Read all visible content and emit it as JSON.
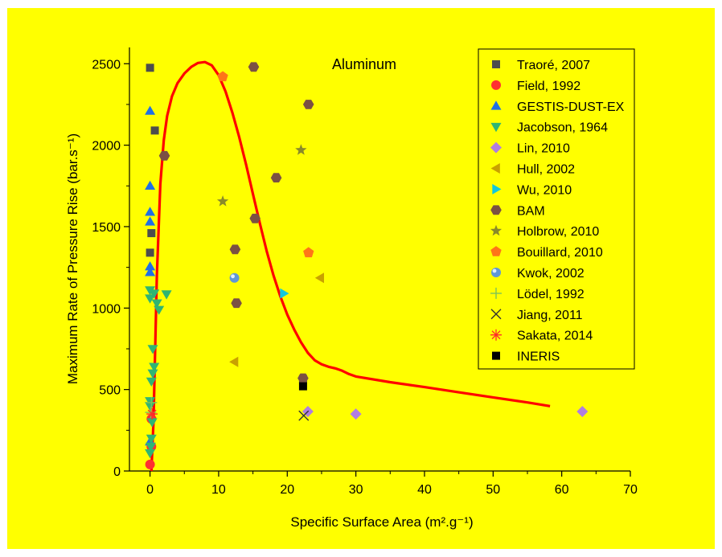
{
  "colors": {
    "background": "#ffff00",
    "fit_curve": "#ff0000"
  },
  "chart_data": {
    "type": "scatter",
    "title": "Aluminum",
    "xlabel": "Specific Surface Area (m².g⁻¹)",
    "ylabel": "Maximum Rate of Pressure Rise (bar.s⁻¹)",
    "xlim": [
      -3,
      70
    ],
    "ylim": [
      0,
      2600
    ],
    "xticks": [
      0,
      10,
      20,
      30,
      40,
      50,
      60,
      70
    ],
    "yticks": [
      0,
      500,
      1000,
      1500,
      2000,
      2500
    ],
    "grid": false,
    "legend_position": "top-right",
    "series": [
      {
        "name": "Traoré, 2007",
        "marker": "square",
        "color": "#4d4d4d",
        "points": [
          [
            0,
            2475
          ],
          [
            0.7,
            2090
          ],
          [
            0.2,
            1460
          ],
          [
            0,
            1340
          ],
          [
            22.3,
            565
          ]
        ]
      },
      {
        "name": "Field, 1992",
        "marker": "circle",
        "color": "#ff3030",
        "points": [
          [
            0,
            40
          ],
          [
            0.2,
            150
          ],
          [
            0.2,
            320
          ]
        ]
      },
      {
        "name": "GESTIS-DUST-EX",
        "marker": "triangle-up",
        "color": "#1f6fe5",
        "points": [
          [
            0,
            2210
          ],
          [
            0,
            1750
          ],
          [
            0,
            1590
          ],
          [
            0,
            1530
          ],
          [
            0,
            1255
          ],
          [
            0,
            1220
          ],
          [
            0,
            180
          ]
        ]
      },
      {
        "name": "Jacobson, 1964",
        "marker": "triangle-down",
        "color": "#2fb573",
        "points": [
          [
            0,
            1110
          ],
          [
            0,
            1060
          ],
          [
            0.6,
            1090
          ],
          [
            1,
            1030
          ],
          [
            1.3,
            990
          ],
          [
            2.4,
            1085
          ],
          [
            0.4,
            750
          ],
          [
            0.6,
            640
          ],
          [
            0.4,
            600
          ],
          [
            0.2,
            550
          ],
          [
            0,
            430
          ],
          [
            0,
            400
          ],
          [
            0.3,
            300
          ],
          [
            0.2,
            200
          ],
          [
            0.1,
            150
          ],
          [
            0,
            110
          ]
        ]
      },
      {
        "name": "Lin, 2010",
        "marker": "diamond",
        "color": "#b07ee0",
        "points": [
          [
            23,
            365
          ],
          [
            30,
            350
          ],
          [
            63,
            365
          ]
        ]
      },
      {
        "name": "Hull, 2002",
        "marker": "triangle-left",
        "color": "#c9a100",
        "points": [
          [
            12.3,
            670
          ],
          [
            24.8,
            1185
          ]
        ]
      },
      {
        "name": "Wu, 2010",
        "marker": "triangle-right",
        "color": "#12c8dd",
        "points": [
          [
            19.5,
            1090
          ]
        ]
      },
      {
        "name": "BAM",
        "marker": "hexagon",
        "color": "#7b5143",
        "points": [
          [
            15.1,
            2480
          ],
          [
            23.1,
            2250
          ],
          [
            18.4,
            1800
          ],
          [
            15.3,
            1550
          ],
          [
            12.4,
            1360
          ],
          [
            12.6,
            1030
          ],
          [
            2.1,
            1935
          ],
          [
            22.3,
            570
          ]
        ]
      },
      {
        "name": "Holbrow, 2010",
        "marker": "star",
        "color": "#8a8a2a",
        "points": [
          [
            10.6,
            1655
          ],
          [
            22.0,
            1970
          ]
        ]
      },
      {
        "name": "Bouillard, 2010",
        "marker": "pentagon",
        "color": "#ff7518",
        "points": [
          [
            10.6,
            2420
          ],
          [
            23.1,
            1340
          ]
        ]
      },
      {
        "name": "Kwok, 2002",
        "marker": "sphere",
        "color": "#5f97d6",
        "points": [
          [
            12.3,
            1185
          ]
        ]
      },
      {
        "name": "Lödel, 1992",
        "marker": "plus",
        "color": "#7ac25a",
        "points": [
          [
            0.2,
            420
          ],
          [
            0.1,
            360
          ]
        ]
      },
      {
        "name": "Jiang, 2011",
        "marker": "cross",
        "color": "#333333",
        "points": [
          [
            22.4,
            340
          ]
        ]
      },
      {
        "name": "Sakata, 2014",
        "marker": "asterisk",
        "color": "#ff2a2a",
        "points": [
          [
            0.3,
            350
          ]
        ]
      },
      {
        "name": "INERIS",
        "marker": "square-filled",
        "color": "#000000",
        "points": [
          [
            22.3,
            520
          ]
        ]
      }
    ],
    "fit_curve": {
      "color": "#ff0000",
      "points": [
        [
          0.2,
          0
        ],
        [
          0.5,
          300
        ],
        [
          1,
          1200
        ],
        [
          1.5,
          1760
        ],
        [
          2,
          2030
        ],
        [
          2.5,
          2180
        ],
        [
          3.2,
          2300
        ],
        [
          4,
          2380
        ],
        [
          5,
          2440
        ],
        [
          6,
          2480
        ],
        [
          7,
          2505
        ],
        [
          8,
          2510
        ],
        [
          9,
          2490
        ],
        [
          10,
          2430
        ],
        [
          11,
          2330
        ],
        [
          12,
          2200
        ],
        [
          13,
          2050
        ],
        [
          14,
          1880
        ],
        [
          15,
          1700
        ],
        [
          16,
          1520
        ],
        [
          17,
          1350
        ],
        [
          18,
          1200
        ],
        [
          19,
          1070
        ],
        [
          20,
          960
        ],
        [
          21,
          870
        ],
        [
          22,
          790
        ],
        [
          23,
          725
        ],
        [
          24,
          680
        ],
        [
          25,
          655
        ],
        [
          26,
          640
        ],
        [
          27,
          630
        ],
        [
          28,
          615
        ],
        [
          29,
          595
        ],
        [
          30,
          580
        ],
        [
          35,
          545
        ],
        [
          40,
          515
        ],
        [
          45,
          483
        ],
        [
          50,
          452
        ],
        [
          55,
          421
        ],
        [
          58.3,
          398
        ]
      ]
    }
  }
}
